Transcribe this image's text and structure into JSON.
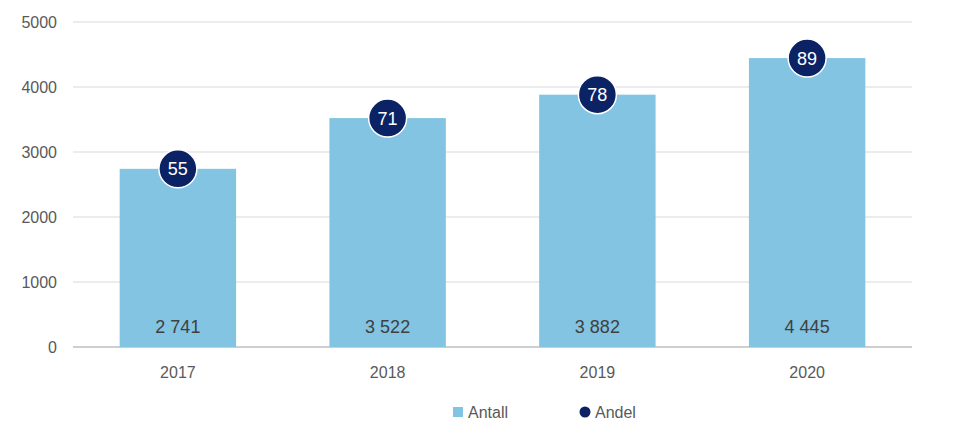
{
  "chart_data": {
    "type": "bar",
    "categories": [
      "2017",
      "2018",
      "2019",
      "2020"
    ],
    "series": [
      {
        "name": "Antall",
        "color": "#82c4e2",
        "values": [
          2741,
          3522,
          3882,
          4445
        ],
        "value_labels": [
          "2 741",
          "3 522",
          "3 882",
          "4 445"
        ]
      },
      {
        "name": "Andel",
        "color": "#0b2265",
        "type": "scatter",
        "marker": "circle",
        "values": [
          55,
          71,
          78,
          89
        ]
      }
    ],
    "ylim": [
      0,
      5000
    ],
    "yticks": [
      0,
      1000,
      2000,
      3000,
      4000,
      5000
    ],
    "grid": true,
    "data_labels": true,
    "legend": "bottom"
  }
}
